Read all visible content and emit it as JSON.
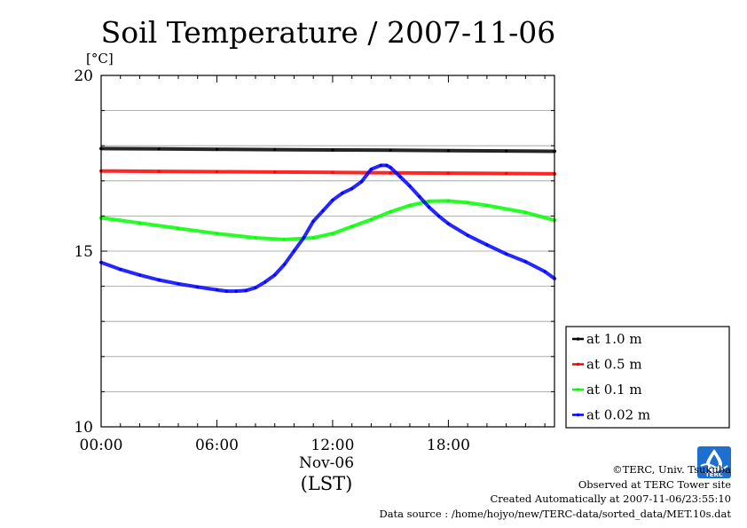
{
  "chart_data": {
    "type": "line",
    "title": "Soil Temperature / 2007-11-06",
    "ylabel_unit": "[°C]",
    "x_date_label": "Nov-06",
    "x_timezone_label": "(LST)",
    "x_ticks": [
      "00:00",
      "06:00",
      "12:00",
      "18:00"
    ],
    "x_tick_hours": [
      0,
      6,
      12,
      18
    ],
    "xlim_hours": [
      0,
      23.5
    ],
    "y_ticks": [
      "10",
      "15",
      "20"
    ],
    "y_tick_values": [
      10,
      15,
      20
    ],
    "ylim": [
      10,
      20
    ],
    "grid": true,
    "legend_position": "right",
    "series": [
      {
        "name": "at 1.0 m",
        "color": "#000000",
        "x": [
          0,
          3,
          6,
          9,
          12,
          15,
          18,
          21,
          23.5
        ],
        "values": [
          17.92,
          17.91,
          17.9,
          17.89,
          17.88,
          17.87,
          17.86,
          17.85,
          17.84
        ]
      },
      {
        "name": "at 0.5 m",
        "color": "#ff0000",
        "x": [
          0,
          3,
          6,
          9,
          12,
          15,
          18,
          21,
          23.5
        ],
        "values": [
          17.28,
          17.27,
          17.26,
          17.25,
          17.24,
          17.23,
          17.22,
          17.21,
          17.2
        ]
      },
      {
        "name": "at 0.1 m",
        "color": "#00ff00",
        "x": [
          0,
          2,
          4,
          6,
          8,
          9.5,
          11,
          12,
          13,
          14,
          15,
          16,
          17,
          18,
          19,
          20,
          22,
          23.5
        ],
        "values": [
          15.95,
          15.8,
          15.65,
          15.5,
          15.38,
          15.33,
          15.38,
          15.5,
          15.7,
          15.9,
          16.12,
          16.3,
          16.42,
          16.43,
          16.38,
          16.3,
          16.1,
          15.88
        ]
      },
      {
        "name": "at 0.02 m",
        "color": "#0000ff",
        "x": [
          0,
          1,
          2,
          3,
          4,
          5,
          6,
          6.5,
          7,
          7.5,
          8,
          8.5,
          9,
          9.5,
          10,
          10.5,
          11,
          11.5,
          12,
          12.5,
          13,
          13.5,
          14,
          14.5,
          14.8,
          15,
          15.5,
          16,
          16.5,
          17,
          17.5,
          18,
          19,
          20,
          21,
          22,
          23,
          23.5
        ],
        "values": [
          14.68,
          14.48,
          14.32,
          14.18,
          14.07,
          13.98,
          13.9,
          13.86,
          13.86,
          13.88,
          13.96,
          14.12,
          14.32,
          14.62,
          15.0,
          15.38,
          15.85,
          16.15,
          16.45,
          16.65,
          16.78,
          16.98,
          17.33,
          17.44,
          17.44,
          17.38,
          17.12,
          16.85,
          16.55,
          16.25,
          16.0,
          15.78,
          15.45,
          15.18,
          14.92,
          14.7,
          14.42,
          14.22
        ]
      }
    ]
  },
  "footer": {
    "credit": "©TERC, Univ. Tsukuba",
    "site": "Observed at TERC Tower site",
    "created": "Created Automatically at 2007-11-06/23:55:10",
    "source": "Data source : /home/hojyo/new/TERC-data/sorted_data/MET.10s.dat"
  },
  "logo": {
    "text": "TERC",
    "color": "#1e6fd0"
  }
}
